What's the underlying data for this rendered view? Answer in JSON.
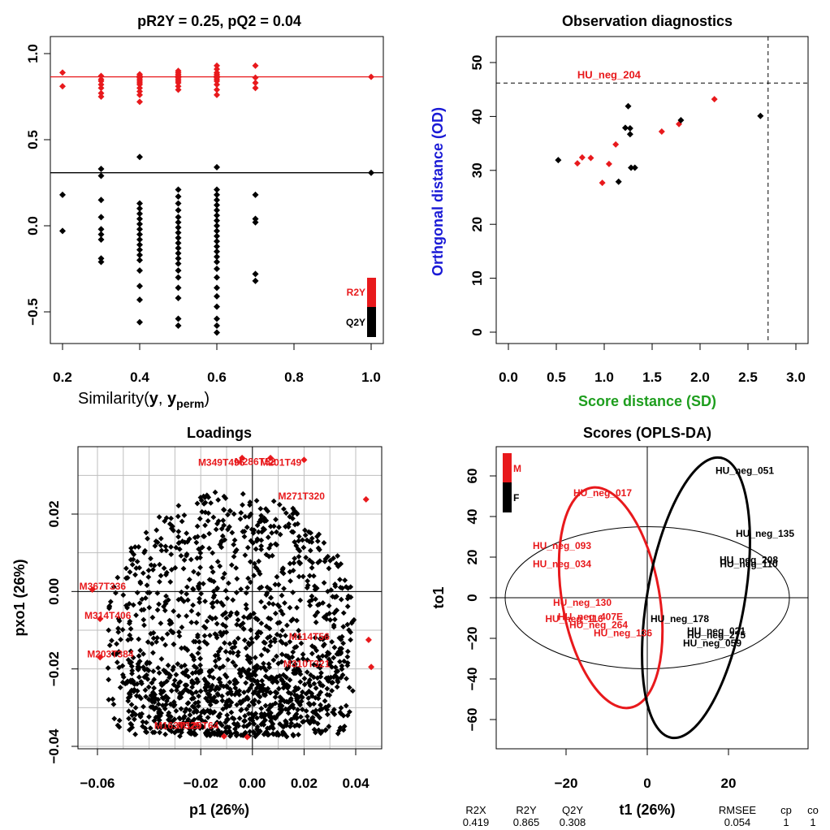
{
  "colors": {
    "red": "#e8191c",
    "black": "#000000",
    "grid": "#bebebe",
    "blue": "#1a1ad6",
    "green": "#1e9e1e"
  },
  "chart_data": [
    {
      "id": "permutation",
      "type": "scatter",
      "title": "pR2Y = 0.25, pQ2 = 0.04",
      "xlabel": "Similarity(y, y_perm)",
      "xlabel_parts": {
        "pre": "Similarity(",
        "y": "y",
        "comma": ", ",
        "yperm": "y",
        "sub": "perm",
        "post": ")"
      },
      "ylabel": "",
      "xlim": [
        0.2,
        1.0
      ],
      "ylim": [
        -0.6,
        1.0
      ],
      "xticks": [
        "0.2",
        "0.4",
        "0.6",
        "0.8",
        "1.0"
      ],
      "yticks": [
        "-0.5",
        "0.0",
        "0.5",
        "1.0"
      ],
      "hlines": [
        {
          "value": 0.865,
          "color": "red"
        },
        {
          "value": 0.308,
          "color": "black"
        }
      ],
      "legend": {
        "position": "bottom-right",
        "items": [
          "R2Y",
          "Q2Y"
        ]
      },
      "series": [
        {
          "name": "R2Y",
          "color": "red",
          "points": [
            [
              0.2,
              0.89
            ],
            [
              0.2,
              0.81
            ],
            [
              0.3,
              0.87
            ],
            [
              0.3,
              0.85
            ],
            [
              0.3,
              0.84
            ],
            [
              0.3,
              0.82
            ],
            [
              0.3,
              0.8
            ],
            [
              0.3,
              0.77
            ],
            [
              0.3,
              0.75
            ],
            [
              0.4,
              0.88
            ],
            [
              0.4,
              0.87
            ],
            [
              0.4,
              0.86
            ],
            [
              0.4,
              0.85
            ],
            [
              0.4,
              0.84
            ],
            [
              0.4,
              0.83
            ],
            [
              0.4,
              0.82
            ],
            [
              0.4,
              0.8
            ],
            [
              0.4,
              0.78
            ],
            [
              0.4,
              0.76
            ],
            [
              0.4,
              0.72
            ],
            [
              0.5,
              0.9
            ],
            [
              0.5,
              0.89
            ],
            [
              0.5,
              0.88
            ],
            [
              0.5,
              0.87
            ],
            [
              0.5,
              0.86
            ],
            [
              0.5,
              0.85
            ],
            [
              0.5,
              0.84
            ],
            [
              0.5,
              0.83
            ],
            [
              0.5,
              0.81
            ],
            [
              0.5,
              0.79
            ],
            [
              0.6,
              0.93
            ],
            [
              0.6,
              0.91
            ],
            [
              0.6,
              0.89
            ],
            [
              0.6,
              0.88
            ],
            [
              0.6,
              0.87
            ],
            [
              0.6,
              0.86
            ],
            [
              0.6,
              0.85
            ],
            [
              0.6,
              0.84
            ],
            [
              0.6,
              0.82
            ],
            [
              0.6,
              0.79
            ],
            [
              0.6,
              0.76
            ],
            [
              0.7,
              0.93
            ],
            [
              0.7,
              0.86
            ],
            [
              0.7,
              0.83
            ],
            [
              0.7,
              0.8
            ],
            [
              1.0,
              0.865
            ]
          ]
        },
        {
          "name": "Q2Y",
          "color": "black",
          "points": [
            [
              0.2,
              0.18
            ],
            [
              0.2,
              -0.03
            ],
            [
              0.3,
              0.33
            ],
            [
              0.3,
              0.29
            ],
            [
              0.3,
              0.15
            ],
            [
              0.3,
              0.05
            ],
            [
              0.3,
              -0.02
            ],
            [
              0.3,
              -0.05
            ],
            [
              0.3,
              -0.08
            ],
            [
              0.3,
              -0.19
            ],
            [
              0.3,
              -0.21
            ],
            [
              0.4,
              0.4
            ],
            [
              0.4,
              0.13
            ],
            [
              0.4,
              0.1
            ],
            [
              0.4,
              0.07
            ],
            [
              0.4,
              0.04
            ],
            [
              0.4,
              0.01
            ],
            [
              0.4,
              -0.02
            ],
            [
              0.4,
              -0.05
            ],
            [
              0.4,
              -0.08
            ],
            [
              0.4,
              -0.11
            ],
            [
              0.4,
              -0.14
            ],
            [
              0.4,
              -0.17
            ],
            [
              0.4,
              -0.2
            ],
            [
              0.4,
              -0.26
            ],
            [
              0.4,
              -0.35
            ],
            [
              0.4,
              -0.43
            ],
            [
              0.4,
              -0.56
            ],
            [
              0.5,
              0.21
            ],
            [
              0.5,
              0.17
            ],
            [
              0.5,
              0.13
            ],
            [
              0.5,
              0.09
            ],
            [
              0.5,
              0.05
            ],
            [
              0.5,
              0.02
            ],
            [
              0.5,
              -0.01
            ],
            [
              0.5,
              -0.04
            ],
            [
              0.5,
              -0.07
            ],
            [
              0.5,
              -0.1
            ],
            [
              0.5,
              -0.13
            ],
            [
              0.5,
              -0.16
            ],
            [
              0.5,
              -0.19
            ],
            [
              0.5,
              -0.22
            ],
            [
              0.5,
              -0.26
            ],
            [
              0.5,
              -0.3
            ],
            [
              0.5,
              -0.36
            ],
            [
              0.5,
              -0.42
            ],
            [
              0.5,
              -0.54
            ],
            [
              0.5,
              -0.58
            ],
            [
              0.6,
              0.34
            ],
            [
              0.6,
              0.21
            ],
            [
              0.6,
              0.18
            ],
            [
              0.6,
              0.15
            ],
            [
              0.6,
              0.12
            ],
            [
              0.6,
              0.09
            ],
            [
              0.6,
              0.06
            ],
            [
              0.6,
              0.03
            ],
            [
              0.6,
              0.0
            ],
            [
              0.6,
              -0.03
            ],
            [
              0.6,
              -0.06
            ],
            [
              0.6,
              -0.09
            ],
            [
              0.6,
              -0.12
            ],
            [
              0.6,
              -0.15
            ],
            [
              0.6,
              -0.18
            ],
            [
              0.6,
              -0.21
            ],
            [
              0.6,
              -0.25
            ],
            [
              0.6,
              -0.3
            ],
            [
              0.6,
              -0.36
            ],
            [
              0.6,
              -0.41
            ],
            [
              0.6,
              -0.47
            ],
            [
              0.6,
              -0.54
            ],
            [
              0.6,
              -0.58
            ],
            [
              0.6,
              -0.62
            ],
            [
              0.7,
              0.18
            ],
            [
              0.7,
              0.04
            ],
            [
              0.7,
              0.02
            ],
            [
              0.7,
              -0.28
            ],
            [
              0.7,
              -0.32
            ],
            [
              1.0,
              0.308
            ]
          ]
        }
      ]
    },
    {
      "id": "diagnostics",
      "type": "scatter",
      "title": "Observation diagnostics",
      "xlabel": "Score distance (SD)",
      "ylabel": "Orthgonal distance (OD)",
      "xlim": [
        0,
        3
      ],
      "ylim": [
        0,
        50
      ],
      "xticks": [
        "0.0",
        "0.5",
        "1.0",
        "1.5",
        "2.0",
        "2.5",
        "3.0"
      ],
      "yticks": [
        "0",
        "10",
        "20",
        "30",
        "40",
        "50"
      ],
      "vline": 2.71,
      "hline": 46.2,
      "annotations": [
        {
          "text": "HU_neg_204",
          "x": 1.05,
          "y": 47.1,
          "color": "red"
        }
      ],
      "series": [
        {
          "name": "",
          "color": "red",
          "points": [
            [
              0.72,
              31.3
            ],
            [
              0.77,
              32.4
            ],
            [
              0.86,
              32.3
            ],
            [
              0.98,
              27.7
            ],
            [
              1.05,
              31.2
            ],
            [
              1.12,
              34.8
            ],
            [
              1.6,
              37.2
            ],
            [
              1.78,
              38.6
            ],
            [
              2.15,
              43.2
            ]
          ]
        },
        {
          "name": "",
          "color": "black",
          "points": [
            [
              0.52,
              31.9
            ],
            [
              1.15,
              27.9
            ],
            [
              1.22,
              37.9
            ],
            [
              1.25,
              41.9
            ],
            [
              1.27,
              36.7
            ],
            [
              1.28,
              30.5
            ],
            [
              1.32,
              30.5
            ],
            [
              1.27,
              37.8
            ],
            [
              1.8,
              39.3
            ],
            [
              2.63,
              40.1
            ]
          ]
        }
      ]
    },
    {
      "id": "loadings",
      "type": "scatter",
      "title": "Loadings",
      "xlabel": "p1 (26%)",
      "ylabel": "pxo1 (26%)",
      "xlim": [
        -0.065,
        0.045
      ],
      "ylim": [
        -0.038,
        0.035
      ],
      "xticks": [
        "-0.06",
        "-0.02",
        "0.00",
        "0.02",
        "0.04"
      ],
      "yticks": [
        "-0.04",
        "-0.02",
        "0.00",
        "0.02"
      ],
      "labels": [
        {
          "text": "M349T496",
          "x": -0.012,
          "y": 0.0325
        },
        {
          "text": "M286T52",
          "x": 0.001,
          "y": 0.0327
        },
        {
          "text": "M201T49",
          "x": 0.011,
          "y": 0.0325
        },
        {
          "text": "M271T320",
          "x": 0.019,
          "y": 0.0238
        },
        {
          "text": "M367T336",
          "x": -0.058,
          "y": 0.0005
        },
        {
          "text": "M314T406",
          "x": -0.056,
          "y": -0.0071
        },
        {
          "text": "M114T56",
          "x": 0.022,
          "y": -0.0125
        },
        {
          "text": "M203T384",
          "x": -0.055,
          "y": -0.017
        },
        {
          "text": "M310T321",
          "x": 0.021,
          "y": -0.0195
        },
        {
          "text": "M163T325",
          "x": -0.029,
          "y": -0.0355
        },
        {
          "text": "M120T64",
          "x": -0.021,
          "y": -0.0355
        }
      ],
      "highlight_points": [
        [
          -0.004,
          0.0345
        ],
        [
          0.007,
          0.0345
        ],
        [
          0.02,
          0.034
        ],
        [
          0.044,
          0.0238
        ],
        [
          -0.062,
          0.0005
        ],
        [
          -0.059,
          -0.0071
        ],
        [
          0.045,
          -0.0125
        ],
        [
          -0.059,
          -0.017
        ],
        [
          0.046,
          -0.0195
        ],
        [
          -0.011,
          -0.0374
        ],
        [
          -0.002,
          -0.0376
        ]
      ],
      "cloud_points": 1500
    },
    {
      "id": "scores",
      "type": "scatter",
      "title": "Scores (OPLS-DA)",
      "xlabel": "t1 (26%)",
      "ylabel": "to1",
      "xlim": [
        -40,
        40
      ],
      "ylim": [
        -72,
        75
      ],
      "xticks": [
        "-20",
        "0",
        "20"
      ],
      "yticks": [
        "-60",
        "-40",
        "-20",
        "0",
        "20",
        "40",
        "60"
      ],
      "legend": {
        "position": "top-left",
        "items": [
          "M",
          "F"
        ]
      },
      "labels": [
        {
          "text": "HU_neg_051",
          "x": 24,
          "y": 61,
          "color": "black"
        },
        {
          "text": "HU_neg_017",
          "x": -11,
          "y": 50,
          "color": "red"
        },
        {
          "text": "HU_neg_135",
          "x": 29,
          "y": 30,
          "color": "black"
        },
        {
          "text": "HU_neg_093",
          "x": -21,
          "y": 24,
          "color": "red"
        },
        {
          "text": "HU_neg_208",
          "x": 25,
          "y": 17,
          "color": "black"
        },
        {
          "text": "HU_neg_110",
          "x": 25,
          "y": 15,
          "color": "black"
        },
        {
          "text": "HU_neg_034",
          "x": -21,
          "y": 15,
          "color": "red"
        },
        {
          "text": "HU_neg_130",
          "x": -16,
          "y": -4,
          "color": "red"
        },
        {
          "text": "HU_neg_178",
          "x": 8,
          "y": -12,
          "color": "black"
        },
        {
          "text": "HU_neg_407E",
          "x": -14,
          "y": -11,
          "color": "red"
        },
        {
          "text": "HU_neg_116",
          "x": -18,
          "y": -12,
          "color": "red"
        },
        {
          "text": "HU_neg_264",
          "x": -12,
          "y": -15,
          "color": "red"
        },
        {
          "text": "HU_neg_021",
          "x": 17,
          "y": -18,
          "color": "black"
        },
        {
          "text": "HU_neg_136",
          "x": -6,
          "y": -19,
          "color": "red"
        },
        {
          "text": "HU_neg_275",
          "x": 17,
          "y": -20,
          "color": "black"
        },
        {
          "text": "HU_neg_059",
          "x": 16,
          "y": -24,
          "color": "black"
        }
      ],
      "ellipses": [
        {
          "color": "red",
          "cx": -9,
          "cy": 0,
          "rx": 12,
          "ry": 55,
          "tilt": -10
        },
        {
          "color": "black",
          "cx": 12,
          "cy": 0,
          "rx": 12,
          "ry": 70,
          "tilt": 10
        }
      ],
      "circle": {
        "cx": 0,
        "cy": 0,
        "r": 35
      }
    }
  ],
  "summary_table": {
    "headers": [
      "R2X",
      "R2Y",
      "Q2Y",
      "RMSEE",
      "cp",
      "co"
    ],
    "values": [
      "0.419",
      "0.865",
      "0.308",
      "0.054",
      "1",
      "1"
    ]
  }
}
